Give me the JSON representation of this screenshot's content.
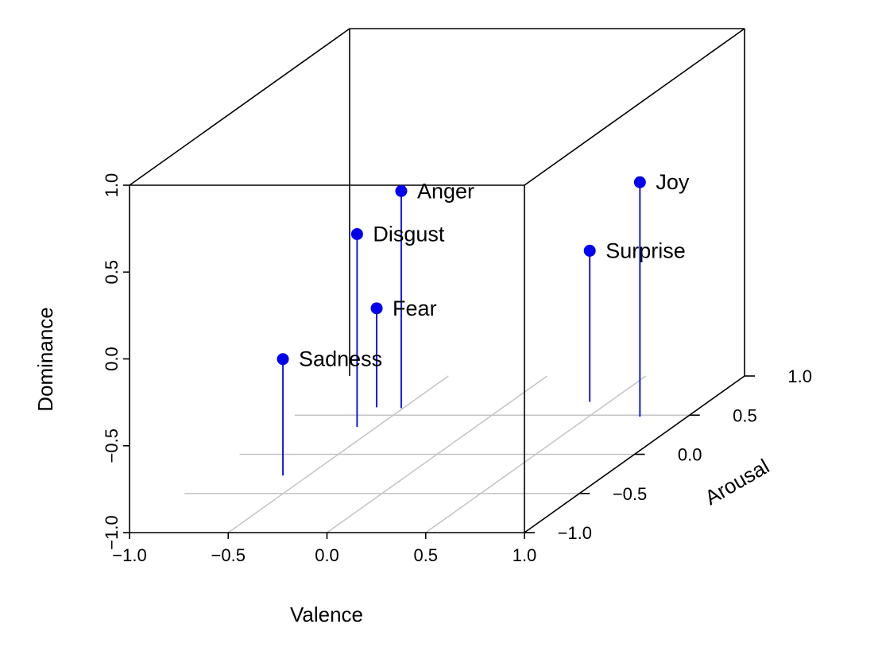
{
  "chart_data": {
    "type": "scatter3d",
    "title": "",
    "xlabel": "Valence",
    "ylabel": "Arousal",
    "zlabel": "Dominance",
    "xlim": [
      -1.0,
      1.0
    ],
    "ylim": [
      -1.0,
      1.0
    ],
    "zlim": [
      -1.0,
      1.0
    ],
    "x_ticks": [
      "−1.0",
      "−0.5",
      "0.0",
      "0.5",
      "1.0"
    ],
    "y_ticks": [
      "−1.0",
      "−0.5",
      "0.0",
      "0.5",
      "1.0"
    ],
    "z_ticks": [
      "−1.0",
      "−0.5",
      "0.0",
      "0.5",
      "1.0"
    ],
    "grid": true,
    "type_h_stems": true,
    "point_color": "#0000ee",
    "points": [
      {
        "label": "Sadness",
        "x": -0.63,
        "y": -0.27,
        "z": -0.33
      },
      {
        "label": "Disgust",
        "x": -0.6,
        "y": 0.35,
        "z": 0.11
      },
      {
        "label": "Fear",
        "x": -0.64,
        "y": 0.6,
        "z": -0.43
      },
      {
        "label": "Anger",
        "x": -0.51,
        "y": 0.59,
        "z": 0.25
      },
      {
        "label": "Surprise",
        "x": 0.4,
        "y": 0.67,
        "z": -0.13
      },
      {
        "label": "Joy",
        "x": 0.76,
        "y": 0.48,
        "z": 0.35
      }
    ]
  }
}
